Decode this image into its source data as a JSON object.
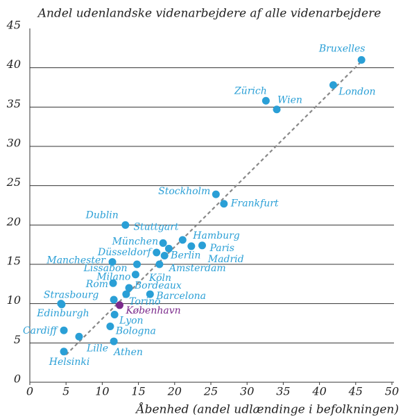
{
  "chart_data": {
    "type": "scatter",
    "title": "Andel udenlandske videnarbejdere af alle videnarbejdere",
    "x_label": "Åbenhed (andel udlændinge i befolkningen)",
    "labels": [
      "Bruxelles",
      "London",
      "Zürich",
      "Wien",
      "Stockholm",
      "Frankfurt",
      "Dublin",
      "Stuttgart",
      "Hamburg",
      "München",
      "Paris",
      "Madrid",
      "Berlin",
      "Düsseldorf",
      "Amsterdam",
      "Manchester",
      "Lissabon",
      "Milano",
      "Köln",
      "Rom",
      "Bordeaux",
      "Barcelona",
      "Strasbourg",
      "Edinburgh",
      "Torino",
      "København",
      "Lyon",
      "Bologna",
      "Cardiff",
      "Lille",
      "Athen",
      "Helsinki"
    ],
    "x": [
      45.8,
      41.9,
      32.6,
      34.1,
      25.7,
      26.8,
      13.2,
      19.2,
      21.1,
      18.4,
      23.8,
      22.3,
      18.6,
      17.5,
      17.9,
      11.4,
      14.8,
      14.6,
      13.7,
      11.5,
      13.3,
      16.6,
      4.3,
      4.4,
      11.6,
      12.4,
      11.7,
      11.1,
      4.7,
      6.8,
      11.6,
      4.7
    ],
    "y": [
      41.0,
      37.8,
      35.8,
      34.7,
      23.9,
      22.7,
      20.0,
      17.0,
      18.1,
      17.7,
      17.4,
      17.3,
      16.1,
      16.5,
      15.0,
      15.3,
      15.0,
      13.7,
      12.0,
      12.6,
      11.2,
      11.2,
      10.0,
      9.9,
      10.5,
      9.8,
      8.6,
      7.1,
      6.6,
      5.8,
      5.2,
      3.9
    ],
    "color": "#2a9fd6",
    "highlight": {
      "index": 25,
      "color": "#7b2a8c"
    },
    "trendline": {
      "x": [
        5,
        46
      ],
      "y": [
        3.5,
        41
      ]
    },
    "xlim": [
      0,
      50
    ],
    "xticks": [
      0,
      5,
      10,
      15,
      20,
      25,
      30,
      35,
      40,
      45,
      50
    ],
    "ylim": [
      0,
      45
    ],
    "yticks": [
      0,
      5,
      10,
      15,
      20,
      25,
      30,
      35,
      40,
      45
    ],
    "grid": true
  }
}
